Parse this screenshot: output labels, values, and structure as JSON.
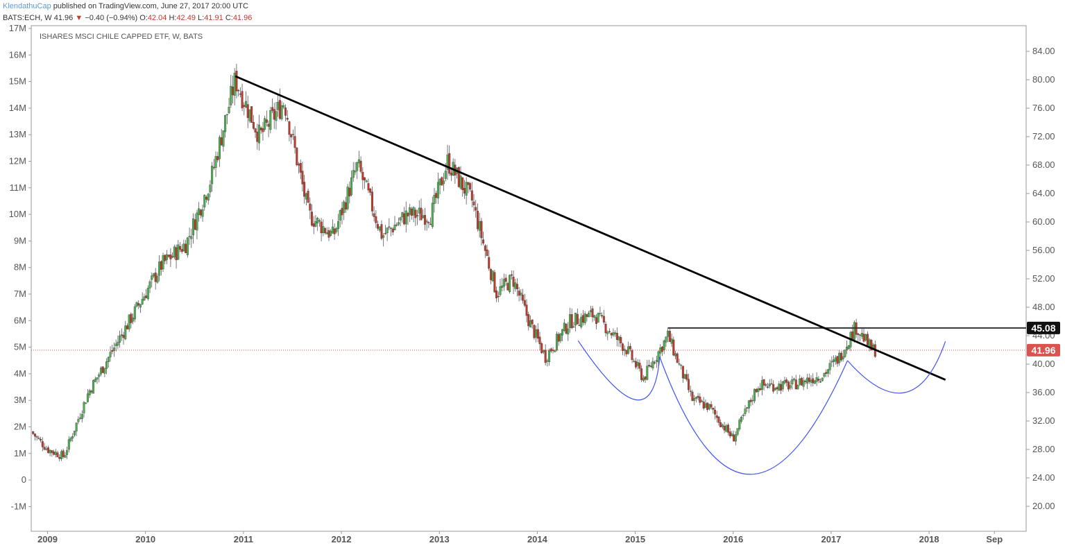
{
  "header": {
    "author": "KlendathuCap",
    "published": "published on TradingView.com, June 27, 2017 20:00 UTC",
    "symbol": "BATS:ECH, W",
    "last": "41.96",
    "arrow": "▼",
    "change": "−0.40 (−0.94%)",
    "o_label": "O:",
    "o_value": "42.04",
    "h_label": "H:",
    "h_value": "42.49",
    "l_label": "L:",
    "l_value": "41.91",
    "c_label": "C:",
    "c_value": "41.96"
  },
  "colors": {
    "up_candle": "#4caf50",
    "down_candle": "#c0392b",
    "trendline": "#000000",
    "cup_handle": "#3f51f5",
    "current_price": "#d9534f",
    "grid_border": "#9a9a9a"
  },
  "chart_data": {
    "type": "candlestick",
    "title": "ISHARES MSCI CHILE CAPPED ETF, W, BATS",
    "price_axis": {
      "side": "right",
      "ticks": [
        "84.00",
        "80.00",
        "76.00",
        "72.00",
        "68.00",
        "64.00",
        "60.00",
        "56.00",
        "52.00",
        "48.00",
        "44.00",
        "40.00",
        "36.00",
        "32.00",
        "28.00",
        "24.00",
        "20.00"
      ],
      "ylim": [
        18.0,
        86.5
      ]
    },
    "volume_axis": {
      "side": "left",
      "ticks": [
        "17M",
        "16M",
        "15M",
        "14M",
        "13M",
        "12M",
        "11M",
        "10M",
        "9M",
        "8M",
        "7M",
        "6M",
        "5M",
        "4M",
        "3M",
        "2M",
        "1M",
        "0",
        "-1M"
      ]
    },
    "x_ticks": [
      "2009",
      "2010",
      "2011",
      "2012",
      "2013",
      "2014",
      "2015",
      "2016",
      "2017",
      "2018",
      "Sep"
    ],
    "grid": false,
    "price_path": [
      [
        "2008-11",
        30.5
      ],
      [
        "2009-01",
        28
      ],
      [
        "2009-03",
        27
      ],
      [
        "2009-06",
        36
      ],
      [
        "2009-09",
        42
      ],
      [
        "2009-12",
        48
      ],
      [
        "2010-03",
        54
      ],
      [
        "2010-06",
        57
      ],
      [
        "2010-09",
        66
      ],
      [
        "2010-12",
        80
      ],
      [
        "2011-03",
        72
      ],
      [
        "2011-06",
        77
      ],
      [
        "2011-09",
        61
      ],
      [
        "2011-12",
        58
      ],
      [
        "2012-03",
        68
      ],
      [
        "2012-06",
        58
      ],
      [
        "2012-09",
        61
      ],
      [
        "2012-12",
        61
      ],
      [
        "2013-02",
        68.5
      ],
      [
        "2013-05",
        63
      ],
      [
        "2013-08",
        50
      ],
      [
        "2013-10",
        52
      ],
      [
        "2013-12",
        46
      ],
      [
        "2014-02",
        41
      ],
      [
        "2014-05",
        46
      ],
      [
        "2014-08",
        47
      ],
      [
        "2014-12",
        42
      ],
      [
        "2015-02",
        38
      ],
      [
        "2015-05",
        44
      ],
      [
        "2015-08",
        35
      ],
      [
        "2015-10",
        34
      ],
      [
        "2015-12",
        31
      ],
      [
        "2016-01",
        29.5
      ],
      [
        "2016-04",
        37
      ],
      [
        "2016-08",
        37
      ],
      [
        "2016-12",
        38.5
      ],
      [
        "2017-02",
        41
      ],
      [
        "2017-04",
        45.3
      ],
      [
        "2017-06",
        42
      ]
    ],
    "annotations": {
      "trendline": [
        [
          "2010-12",
          80.5
        ],
        [
          "2018-03",
          37.8
        ]
      ],
      "resistance": {
        "value": 45.08,
        "from": "2015-05",
        "label": "45.08"
      },
      "current_price": {
        "value": 41.96,
        "label": "41.96"
      },
      "left_shoulder": [
        [
          "2014-06",
          43.3
        ],
        [
          "2015-01",
          35.0
        ],
        [
          "2015-04",
          41.0
        ]
      ],
      "cup": [
        [
          "2015-04",
          41.0
        ],
        [
          "2016-03",
          24.5
        ],
        [
          "2017-03",
          40.5
        ]
      ],
      "right_handle": [
        [
          "2017-03",
          40.5
        ],
        [
          "2017-10",
          36.0
        ],
        [
          "2018-03",
          43.2
        ]
      ]
    }
  }
}
